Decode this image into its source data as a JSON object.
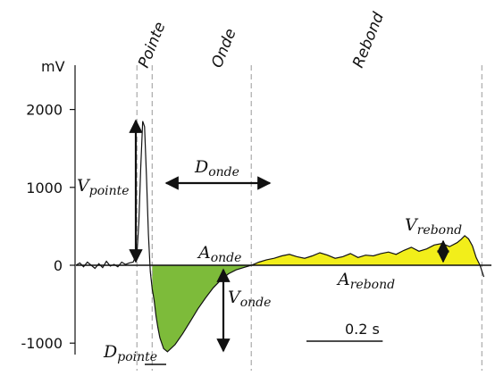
{
  "chart_data": {
    "type": "line",
    "y_unit": "mV",
    "yticks": [
      2000,
      1000,
      0,
      -1000
    ],
    "ytick_labels": [
      "2000",
      "1000",
      "0",
      "-1000"
    ],
    "ylim": [
      -1400,
      2600
    ],
    "xlim": [
      0,
      1.09
    ],
    "phase_labels": {
      "pointe": "Pointe",
      "onde": "Onde",
      "rebond": "Rebond"
    },
    "phase_boundaries": [
      0.16,
      0.2,
      0.46,
      1.065
    ],
    "series": [
      {
        "x": [
          0.0,
          0.01,
          0.02,
          0.03,
          0.04,
          0.05,
          0.06,
          0.07,
          0.08,
          0.09,
          0.1,
          0.11,
          0.12,
          0.13,
          0.14,
          0.15,
          0.16,
          0.165,
          0.17,
          0.175,
          0.18,
          0.185,
          0.19,
          0.195,
          0.2,
          0.205,
          0.21,
          0.215,
          0.22,
          0.23,
          0.24,
          0.26,
          0.28,
          0.3,
          0.32,
          0.34,
          0.36,
          0.38,
          0.4,
          0.42,
          0.44,
          0.46,
          0.47,
          0.48,
          0.5,
          0.52,
          0.54,
          0.56,
          0.58,
          0.6,
          0.62,
          0.64,
          0.66,
          0.68,
          0.7,
          0.72,
          0.74,
          0.76,
          0.78,
          0.8,
          0.82,
          0.84,
          0.86,
          0.88,
          0.9,
          0.92,
          0.94,
          0.96,
          0.98,
          1.0,
          1.01,
          1.02,
          1.03,
          1.04,
          1.05,
          1.06,
          1.07
        ],
        "y": [
          0,
          30,
          -20,
          40,
          0,
          -40,
          20,
          -30,
          50,
          -10,
          10,
          -20,
          40,
          10,
          30,
          40,
          150,
          550,
          1250,
          1850,
          1780,
          1150,
          400,
          -80,
          -300,
          -450,
          -650,
          -800,
          -930,
          -1070,
          -1110,
          -1020,
          -880,
          -720,
          -560,
          -420,
          -290,
          -190,
          -110,
          -60,
          -30,
          0,
          20,
          40,
          70,
          90,
          120,
          140,
          110,
          90,
          120,
          160,
          130,
          90,
          110,
          150,
          100,
          130,
          120,
          150,
          170,
          140,
          190,
          230,
          180,
          210,
          260,
          280,
          240,
          290,
          330,
          380,
          340,
          250,
          100,
          0,
          -150
        ]
      }
    ],
    "scale_bar": {
      "length_s": 0.2,
      "label": "0.2 s"
    },
    "annotations": {
      "v_pointe": {
        "base": "V",
        "sub": "pointe"
      },
      "d_onde": {
        "base": "D",
        "sub": "onde"
      },
      "a_onde": {
        "base": "A",
        "sub": "onde"
      },
      "v_onde": {
        "base": "V",
        "sub": "onde"
      },
      "v_rebond": {
        "base": "V",
        "sub": "rebond"
      },
      "a_rebond": {
        "base": "A",
        "sub": "rebond"
      },
      "d_pointe": {
        "base": "D",
        "sub": "pointe"
      }
    },
    "colors": {
      "trace": "#111111",
      "onde_fill": "#7dbb3a",
      "rebond_fill": "#f2ee1a",
      "dashed_line": "#aaaaaa",
      "axis": "#111111"
    }
  }
}
